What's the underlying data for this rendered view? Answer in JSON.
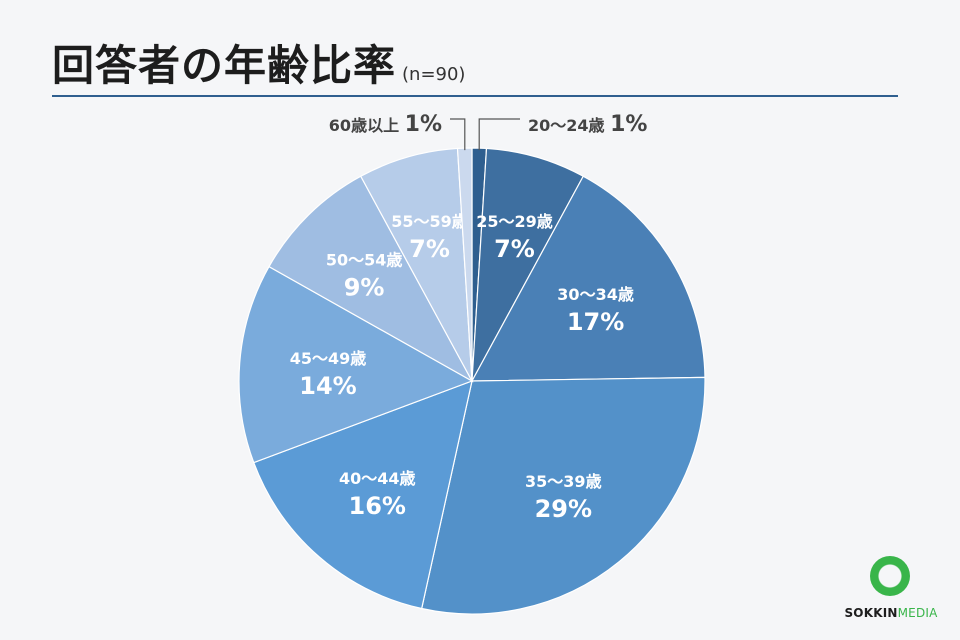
{
  "header": {
    "title": "回答者の年齢比率",
    "subtitle": "(n=90)"
  },
  "chart_data": {
    "type": "pie",
    "title": "回答者の年齢比率",
    "subtitle": "(n=90)",
    "start": "12 o'clock, clockwise",
    "slices": [
      {
        "label": "20〜24歳",
        "value": 1,
        "display": "1%",
        "color": "#2f5f8f",
        "label_pos": "outside"
      },
      {
        "label": "25〜29歳",
        "value": 7,
        "display": "7%",
        "color": "#3e6fa0",
        "label_pos": "inside"
      },
      {
        "label": "30〜34歳",
        "value": 17,
        "display": "17%",
        "color": "#4a80b6",
        "label_pos": "inside"
      },
      {
        "label": "35〜39歳",
        "value": 29,
        "display": "29%",
        "color": "#5391c9",
        "label_pos": "inside"
      },
      {
        "label": "40〜44歳",
        "value": 16,
        "display": "16%",
        "color": "#5b9bd6",
        "label_pos": "inside"
      },
      {
        "label": "45〜49歳",
        "value": 14,
        "display": "14%",
        "color": "#7aabdc",
        "label_pos": "inside"
      },
      {
        "label": "50〜54歳",
        "value": 9,
        "display": "9%",
        "color": "#9fbde2",
        "label_pos": "inside"
      },
      {
        "label": "55〜59歳",
        "value": 7,
        "display": "7%",
        "color": "#b6cce9",
        "label_pos": "inside"
      },
      {
        "label": "60歳以上",
        "value": 1,
        "display": "1%",
        "color": "#cbd9ee",
        "label_pos": "outside"
      }
    ]
  },
  "logo": {
    "part1": "SOKKIN",
    "part2": "MEDIA"
  }
}
